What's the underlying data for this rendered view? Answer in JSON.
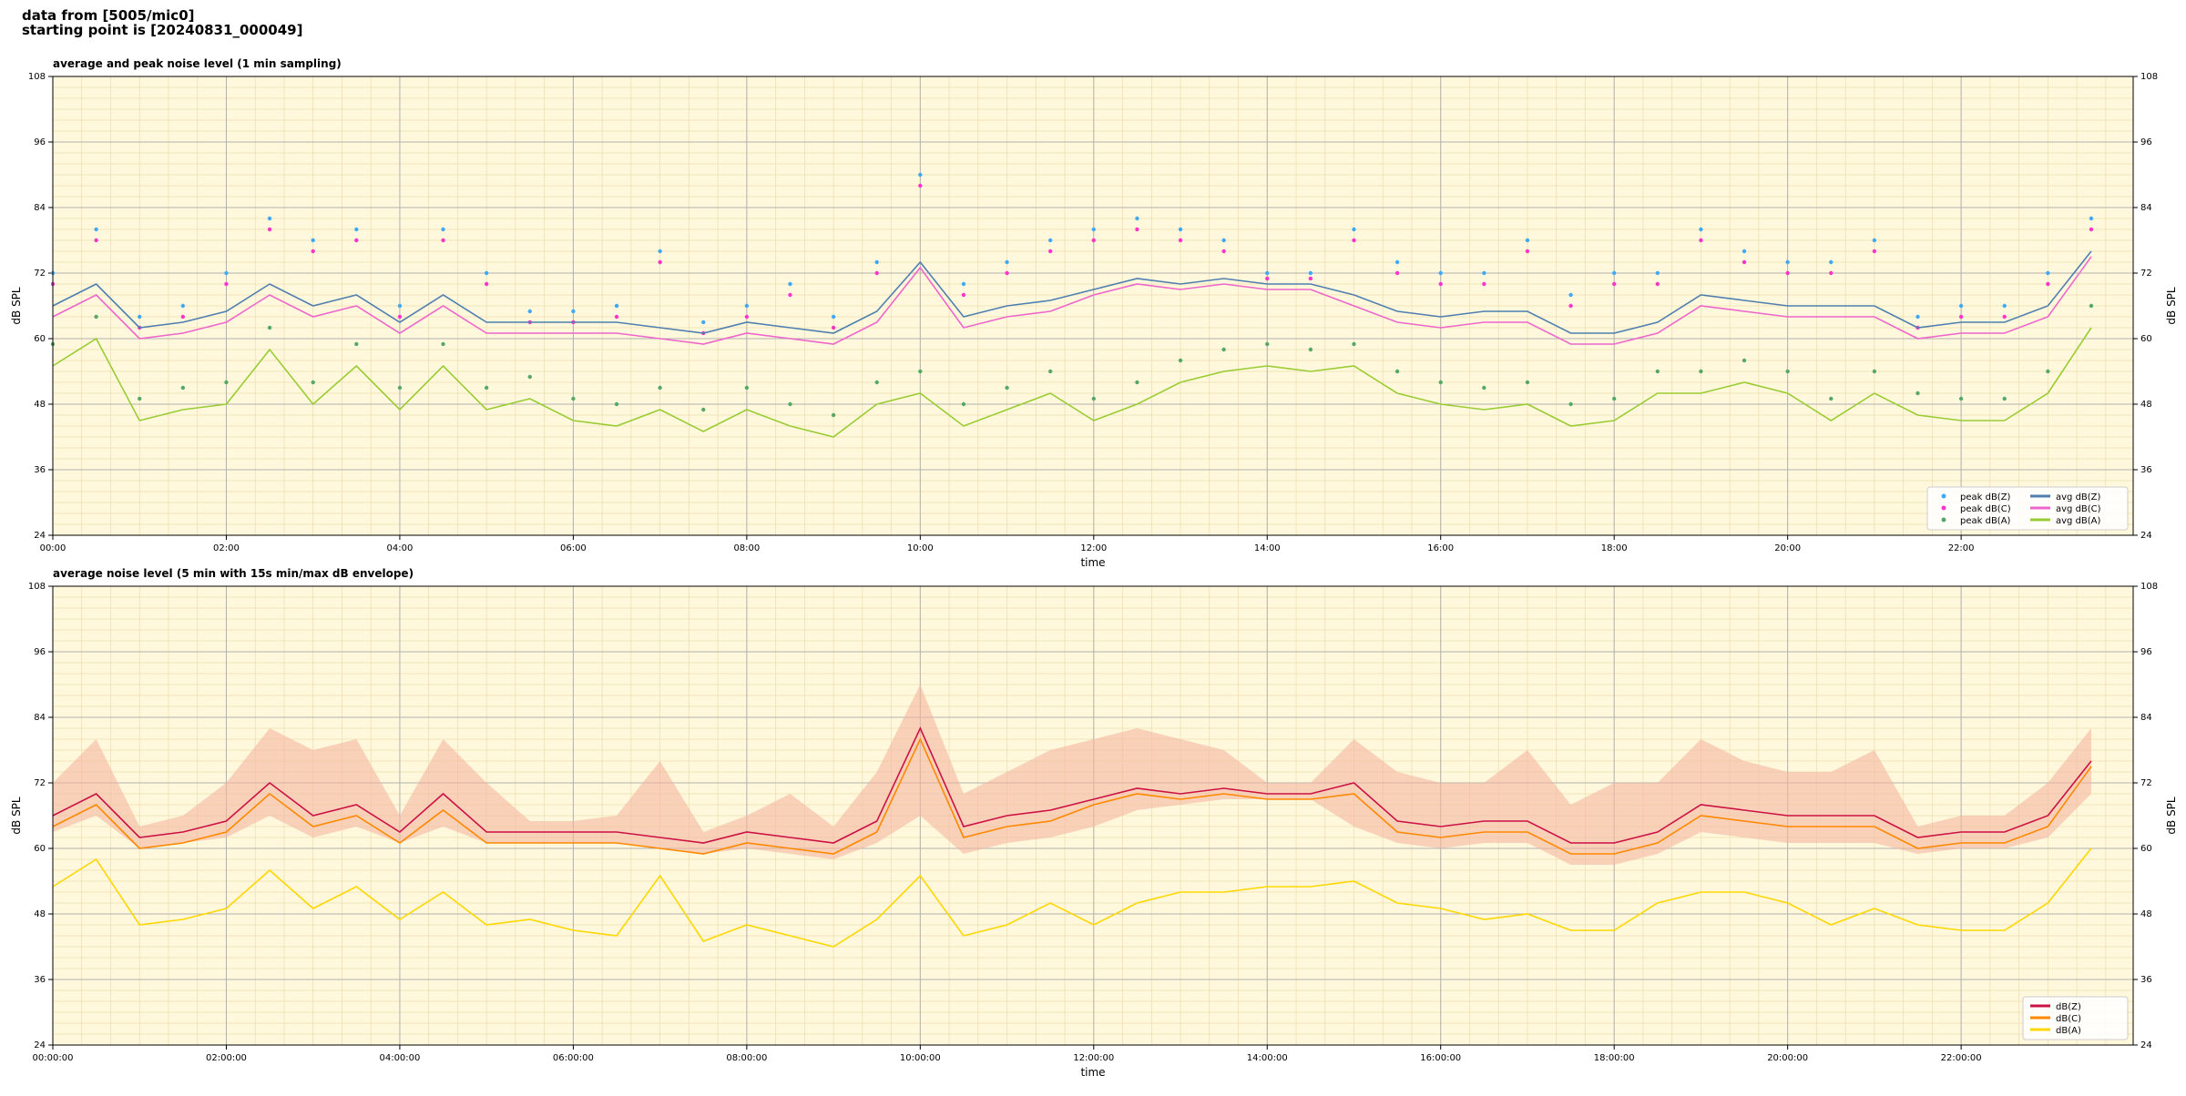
{
  "header": {
    "lines": [
      "data from [5005/mic0]",
      "starting point is [20240831_000049]"
    ]
  },
  "chart_data": [
    {
      "type": "line",
      "title": "average and peak noise level (1 min sampling)",
      "xlabel": "time",
      "ylabel": "dB SPL",
      "y2label": "dB SPL",
      "x": [
        "00:00",
        "00:30",
        "01:00",
        "01:30",
        "02:00",
        "02:30",
        "03:00",
        "03:30",
        "04:00",
        "04:30",
        "05:00",
        "05:30",
        "06:00",
        "06:30",
        "07:00",
        "07:30",
        "08:00",
        "08:30",
        "09:00",
        "09:30",
        "10:00",
        "10:30",
        "11:00",
        "11:30",
        "12:00",
        "12:30",
        "13:00",
        "13:30",
        "14:00",
        "14:30",
        "15:00",
        "15:30",
        "16:00",
        "16:30",
        "17:00",
        "17:30",
        "18:00",
        "18:30",
        "19:00",
        "19:30",
        "20:00",
        "20:30",
        "21:00",
        "21:30",
        "22:00",
        "22:30",
        "23:00",
        "23:30"
      ],
      "xlim": [
        "00:00",
        "23:59"
      ],
      "xticks": [
        "00:00",
        "02:00",
        "04:00",
        "06:00",
        "08:00",
        "10:00",
        "12:00",
        "14:00",
        "16:00",
        "18:00",
        "20:00",
        "22:00"
      ],
      "ylim": [
        24,
        108
      ],
      "yticks": [
        24,
        36,
        48,
        60,
        72,
        84,
        96,
        108
      ],
      "y2lim": [
        24,
        108
      ],
      "y2ticks": [
        24,
        36,
        48,
        60,
        72,
        84,
        96,
        108
      ],
      "grid": true,
      "minor_grid": true,
      "legend": "lower right",
      "background": "#fff8dc",
      "series": [
        {
          "name": "peak dB(Z)",
          "kind": "scatter",
          "color": "#3fa9f5",
          "values": [
            72,
            80,
            64,
            66,
            72,
            82,
            78,
            80,
            66,
            80,
            72,
            65,
            65,
            66,
            76,
            63,
            66,
            70,
            64,
            74,
            90,
            70,
            74,
            78,
            80,
            82,
            80,
            78,
            72,
            72,
            80,
            74,
            72,
            72,
            78,
            68,
            72,
            72,
            80,
            76,
            74,
            74,
            78,
            64,
            66,
            66,
            72,
            82
          ]
        },
        {
          "name": "peak dB(C)",
          "kind": "scatter",
          "color": "#ff33cc",
          "values": [
            70,
            78,
            62,
            64,
            70,
            80,
            76,
            78,
            64,
            78,
            70,
            63,
            63,
            64,
            74,
            61,
            64,
            68,
            62,
            72,
            88,
            68,
            72,
            76,
            78,
            80,
            78,
            76,
            71,
            71,
            78,
            72,
            70,
            70,
            76,
            66,
            70,
            70,
            78,
            74,
            72,
            72,
            76,
            62,
            64,
            64,
            70,
            80
          ]
        },
        {
          "name": "peak dB(A)",
          "kind": "scatter",
          "color": "#55a868",
          "values": [
            59,
            64,
            49,
            51,
            52,
            62,
            52,
            59,
            51,
            59,
            51,
            53,
            49,
            48,
            51,
            47,
            51,
            48,
            46,
            52,
            54,
            48,
            51,
            54,
            49,
            52,
            56,
            58,
            59,
            58,
            59,
            54,
            52,
            51,
            52,
            48,
            49,
            54,
            54,
            56,
            54,
            49,
            54,
            50,
            49,
            49,
            54,
            66
          ]
        },
        {
          "name": "avg dB(Z)",
          "kind": "line",
          "color": "#4f7fb0",
          "values": [
            66,
            70,
            62,
            63,
            65,
            70,
            66,
            68,
            63,
            68,
            63,
            63,
            63,
            63,
            62,
            61,
            63,
            62,
            61,
            65,
            74,
            64,
            66,
            67,
            69,
            71,
            70,
            71,
            70,
            70,
            68,
            65,
            64,
            65,
            65,
            61,
            61,
            63,
            68,
            67,
            66,
            66,
            66,
            62,
            63,
            63,
            66,
            76
          ]
        },
        {
          "name": "avg dB(C)",
          "kind": "line",
          "color": "#ee66cc",
          "values": [
            64,
            68,
            60,
            61,
            63,
            68,
            64,
            66,
            61,
            66,
            61,
            61,
            61,
            61,
            60,
            59,
            61,
            60,
            59,
            63,
            73,
            62,
            64,
            65,
            68,
            70,
            69,
            70,
            69,
            69,
            66,
            63,
            62,
            63,
            63,
            59,
            59,
            61,
            66,
            65,
            64,
            64,
            64,
            60,
            61,
            61,
            64,
            75
          ]
        },
        {
          "name": "avg dB(A)",
          "kind": "line",
          "color": "#99cc33",
          "values": [
            55,
            60,
            45,
            47,
            48,
            58,
            48,
            55,
            47,
            55,
            47,
            49,
            45,
            44,
            47,
            43,
            47,
            44,
            42,
            48,
            50,
            44,
            47,
            50,
            45,
            48,
            52,
            54,
            55,
            54,
            55,
            50,
            48,
            47,
            48,
            44,
            45,
            50,
            50,
            52,
            50,
            45,
            50,
            46,
            45,
            45,
            50,
            62
          ]
        }
      ]
    },
    {
      "type": "line",
      "title": "average noise level (5 min with 15s min/max dB envelope)",
      "xlabel": "time",
      "ylabel": "dB SPL",
      "y2label": "dB SPL",
      "x": [
        "00:00:00",
        "00:30:00",
        "01:00:00",
        "01:30:00",
        "02:00:00",
        "02:30:00",
        "03:00:00",
        "03:30:00",
        "04:00:00",
        "04:30:00",
        "05:00:00",
        "05:30:00",
        "06:00:00",
        "06:30:00",
        "07:00:00",
        "07:30:00",
        "08:00:00",
        "08:30:00",
        "09:00:00",
        "09:30:00",
        "10:00:00",
        "10:30:00",
        "11:00:00",
        "11:30:00",
        "12:00:00",
        "12:30:00",
        "13:00:00",
        "13:30:00",
        "14:00:00",
        "14:30:00",
        "15:00:00",
        "15:30:00",
        "16:00:00",
        "16:30:00",
        "17:00:00",
        "17:30:00",
        "18:00:00",
        "18:30:00",
        "19:00:00",
        "19:30:00",
        "20:00:00",
        "20:30:00",
        "21:00:00",
        "21:30:00",
        "22:00:00",
        "22:30:00",
        "23:00:00",
        "23:30:00"
      ],
      "xlim": [
        "00:00:00",
        "23:59:00"
      ],
      "xticks": [
        "00:00:00",
        "02:00:00",
        "04:00:00",
        "06:00:00",
        "08:00:00",
        "10:00:00",
        "12:00:00",
        "14:00:00",
        "16:00:00",
        "18:00:00",
        "20:00:00",
        "22:00:00"
      ],
      "ylim": [
        24,
        108
      ],
      "yticks": [
        24,
        36,
        48,
        60,
        72,
        84,
        96,
        108
      ],
      "y2lim": [
        24,
        108
      ],
      "y2ticks": [
        24,
        36,
        48,
        60,
        72,
        84,
        96,
        108
      ],
      "grid": true,
      "minor_grid": true,
      "legend": "lower right",
      "background": "#fff8dc",
      "envelope": {
        "color": "#f4b8a0",
        "upper": [
          72,
          80,
          64,
          66,
          72,
          82,
          78,
          80,
          66,
          80,
          72,
          65,
          65,
          66,
          76,
          63,
          66,
          70,
          64,
          74,
          90,
          70,
          74,
          78,
          80,
          82,
          80,
          78,
          72,
          72,
          80,
          74,
          72,
          72,
          78,
          68,
          72,
          72,
          80,
          76,
          74,
          74,
          78,
          64,
          66,
          66,
          72,
          82
        ],
        "lower": [
          63,
          66,
          60,
          61,
          62,
          66,
          62,
          64,
          61,
          64,
          61,
          61,
          61,
          61,
          60,
          59,
          60,
          59,
          58,
          61,
          66,
          59,
          61,
          62,
          64,
          67,
          68,
          69,
          69,
          69,
          64,
          61,
          60,
          61,
          61,
          57,
          57,
          59,
          63,
          62,
          61,
          61,
          61,
          59,
          60,
          60,
          62,
          70
        ]
      },
      "series": [
        {
          "name": "dB(Z)",
          "kind": "line",
          "color": "#cc1144",
          "values": [
            66,
            70,
            62,
            63,
            65,
            72,
            66,
            68,
            63,
            70,
            63,
            63,
            63,
            63,
            62,
            61,
            63,
            62,
            61,
            65,
            82,
            64,
            66,
            67,
            69,
            71,
            70,
            71,
            70,
            70,
            72,
            65,
            64,
            65,
            65,
            61,
            61,
            63,
            68,
            67,
            66,
            66,
            66,
            62,
            63,
            63,
            66,
            76
          ]
        },
        {
          "name": "dB(C)",
          "kind": "line",
          "color": "#ff8800",
          "values": [
            64,
            68,
            60,
            61,
            63,
            70,
            64,
            66,
            61,
            67,
            61,
            61,
            61,
            61,
            60,
            59,
            61,
            60,
            59,
            63,
            80,
            62,
            64,
            65,
            68,
            70,
            69,
            70,
            69,
            69,
            70,
            63,
            62,
            63,
            63,
            59,
            59,
            61,
            66,
            65,
            64,
            64,
            64,
            60,
            61,
            61,
            64,
            75
          ]
        },
        {
          "name": "dB(A)",
          "kind": "line",
          "color": "#ffd700",
          "values": [
            53,
            58,
            46,
            47,
            49,
            56,
            49,
            53,
            47,
            52,
            46,
            47,
            45,
            44,
            55,
            43,
            46,
            44,
            42,
            47,
            55,
            44,
            46,
            50,
            46,
            50,
            52,
            52,
            53,
            53,
            54,
            50,
            49,
            47,
            48,
            45,
            45,
            50,
            52,
            52,
            50,
            46,
            49,
            46,
            45,
            45,
            50,
            60
          ]
        }
      ]
    }
  ]
}
